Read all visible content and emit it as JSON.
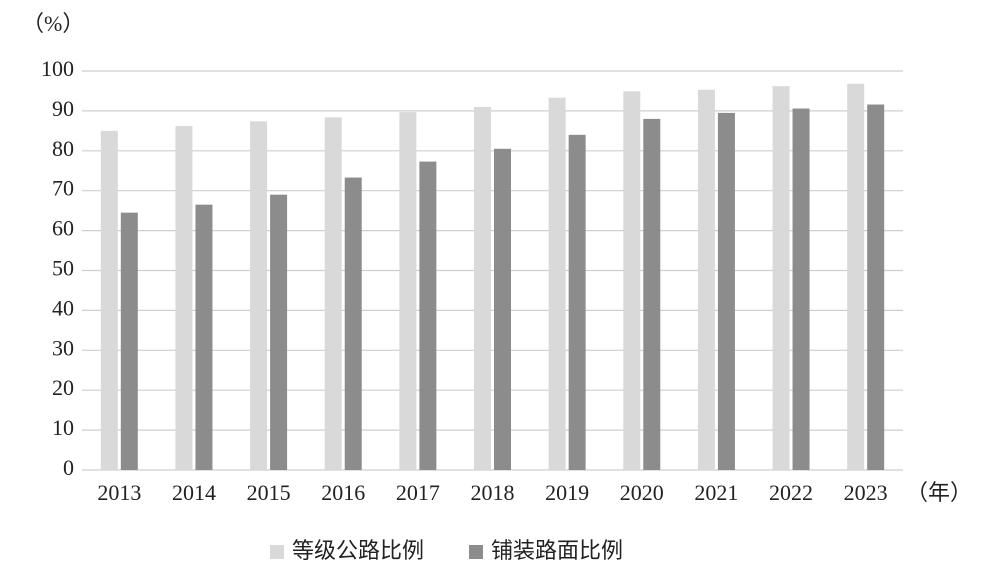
{
  "chart_data": {
    "type": "bar",
    "y_label": "（%）",
    "x_label": "（年）",
    "categories": [
      "2013",
      "2014",
      "2015",
      "2016",
      "2017",
      "2018",
      "2019",
      "2020",
      "2021",
      "2022",
      "2023"
    ],
    "series": [
      {
        "name": "等级公路比例",
        "color": "#d9d9d9",
        "values": [
          85.0,
          86.2,
          87.4,
          88.4,
          89.7,
          91.0,
          93.3,
          94.9,
          95.3,
          96.2,
          96.8
        ]
      },
      {
        "name": "铺装路面比例",
        "color": "#8c8c8c",
        "values": [
          64.5,
          66.5,
          69.0,
          73.3,
          77.3,
          80.5,
          84.0,
          88.0,
          89.5,
          90.6,
          91.6
        ]
      }
    ],
    "ylim": [
      0,
      100
    ],
    "yticks": [
      0,
      10,
      20,
      30,
      40,
      50,
      60,
      70,
      80,
      90,
      100
    ],
    "grid": true,
    "legend": "bottom"
  }
}
